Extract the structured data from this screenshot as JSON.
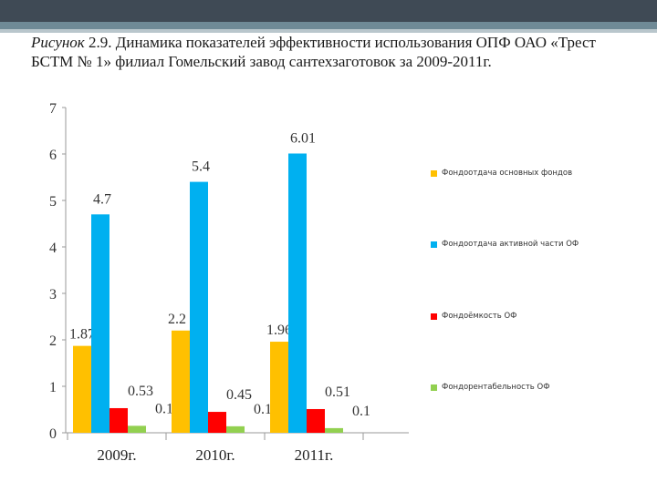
{
  "title": {
    "prefix": "Рисунок",
    "text": " 2.9. Динамика показателей эффективности использования ОПФ ОАО «Трест БСТМ № 1» филиал Гомельский завод сантехзаготовок за 2009-2011г."
  },
  "colors": {
    "series1": "#ffc000",
    "series2": "#00b0f0",
    "series3": "#ff0000",
    "series4": "#92d050",
    "header_dark": "#3f4a55"
  },
  "chart_data": {
    "type": "bar",
    "title": "",
    "categories": [
      "2009г.",
      "2010г.",
      "2011г."
    ],
    "series": [
      {
        "name": "Фондоотдача основных фондов",
        "values": [
          1.87,
          2.2,
          1.96
        ]
      },
      {
        "name": "Фондоотдача активной части ОФ",
        "values": [
          4.7,
          5.4,
          6.01
        ]
      },
      {
        "name": "Фондоёмкость ОФ",
        "values": [
          0.53,
          0.45,
          0.51
        ]
      },
      {
        "name": "Фондорентабельность ОФ",
        "values": [
          0.15,
          0.14,
          0.1
        ]
      }
    ],
    "yticks": [
      0,
      1,
      2,
      3,
      4,
      5,
      6,
      7
    ],
    "ylim": [
      0,
      7
    ],
    "xlabel": "",
    "ylabel": "",
    "legend_position": "right"
  }
}
